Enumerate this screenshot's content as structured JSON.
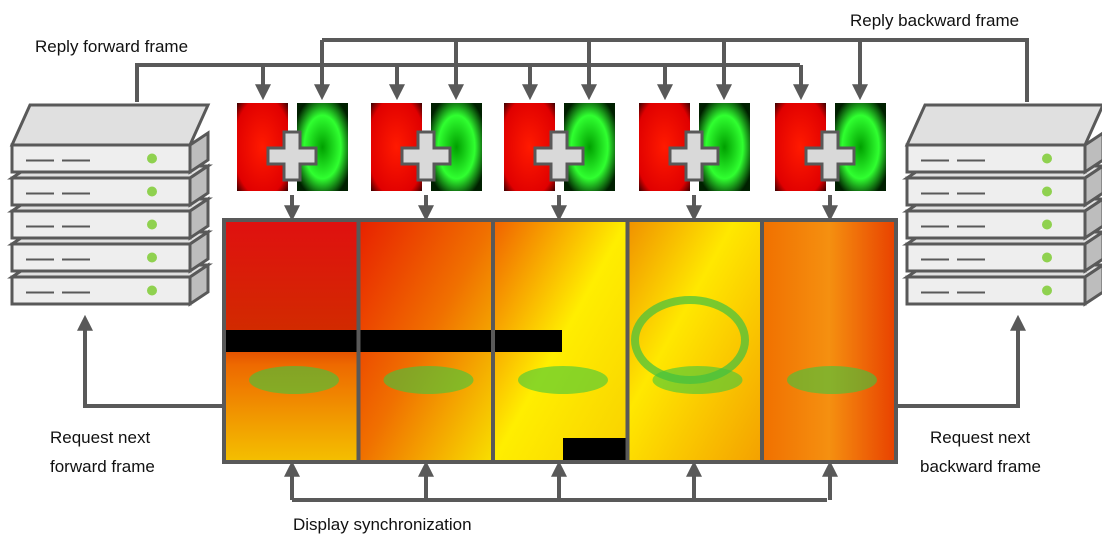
{
  "labels": {
    "reply_forward": "Reply forward frame",
    "reply_backward": "Reply backward frame",
    "request_forward": [
      "Request next",
      "forward frame"
    ],
    "request_backward": [
      "Request next",
      "backward frame"
    ],
    "display_sync": "Display synchronization"
  }
}
